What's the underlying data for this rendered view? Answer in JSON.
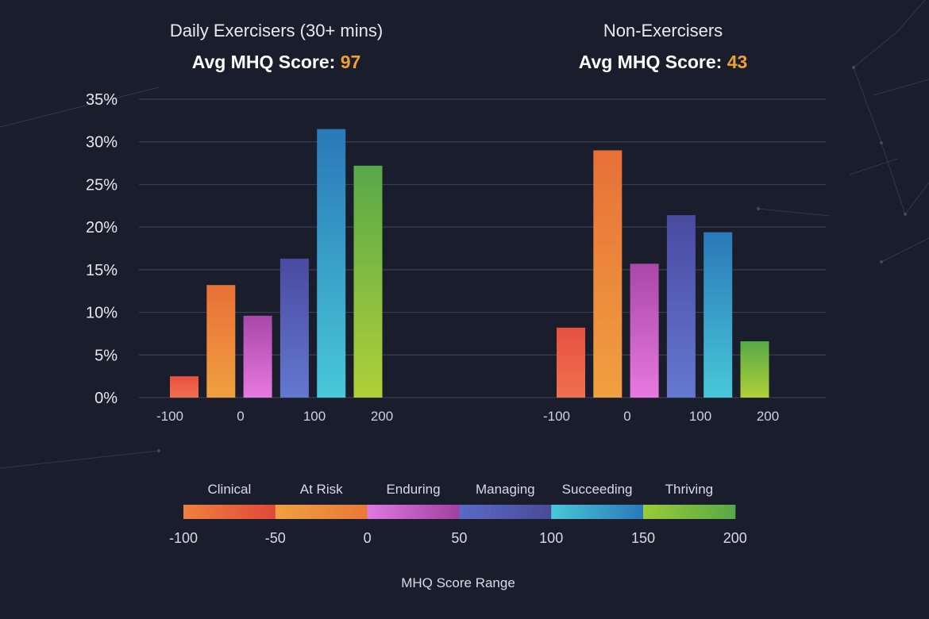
{
  "chart_data": [
    {
      "type": "bar",
      "title": "Daily Exercisers (30+ mins)",
      "score_label": "Avg MHQ Score: ",
      "score_value": "97",
      "categories": [
        "Clinical",
        "At Risk",
        "Enduring",
        "Managing",
        "Succeeding",
        "Thriving"
      ],
      "values": [
        2.5,
        13.2,
        9.6,
        16.3,
        31.5,
        27.2
      ],
      "value_unit": "%",
      "x_ticks": [
        "-100",
        "0",
        "100",
        "200"
      ],
      "ylim": [
        0,
        35
      ],
      "y_ticks": [
        "0%",
        "5%",
        "10%",
        "15%",
        "20%",
        "25%",
        "30%",
        "35%"
      ],
      "grid": true
    },
    {
      "type": "bar",
      "title": "Non-Exercisers",
      "score_label": "Avg MHQ Score: ",
      "score_value": "43",
      "categories": [
        "Clinical",
        "At Risk",
        "Enduring",
        "Managing",
        "Succeeding",
        "Thriving"
      ],
      "values": [
        8.2,
        29.0,
        15.7,
        21.4,
        19.4,
        6.6
      ],
      "value_unit": "%",
      "x_ticks": [
        "-100",
        "0",
        "100",
        "200"
      ],
      "ylim": [
        0,
        35
      ],
      "y_ticks": [
        "0%",
        "5%",
        "10%",
        "15%",
        "20%",
        "25%",
        "30%",
        "35%"
      ],
      "grid": true
    }
  ],
  "legend": {
    "items": [
      {
        "label": "Clinical",
        "color_from": "#f08040",
        "color_to": "#e04838"
      },
      {
        "label": "At Risk",
        "color_from": "#f0a040",
        "color_to": "#e87838"
      },
      {
        "label": "Enduring",
        "color_from": "#e078e0",
        "color_to": "#a040a0"
      },
      {
        "label": "Managing",
        "color_from": "#5a6ac8",
        "color_to": "#4a4a98"
      },
      {
        "label": "Succeeding",
        "color_from": "#48c8d8",
        "color_to": "#2a78b8"
      },
      {
        "label": "Thriving",
        "color_from": "#98cc38",
        "color_to": "#58a848"
      }
    ],
    "ticks": [
      "-100",
      "-50",
      "0",
      "50",
      "100",
      "150",
      "200"
    ],
    "axis_title": "MHQ Score Range"
  },
  "bar_colors": [
    {
      "top": "#e85040",
      "bottom": "#f07050"
    },
    {
      "top": "#e87038",
      "bottom": "#f0a040"
    },
    {
      "top": "#a848a8",
      "bottom": "#e878e0"
    },
    {
      "top": "#4a4aa0",
      "bottom": "#6478d0"
    },
    {
      "top": "#2a78b8",
      "bottom": "#48c8d8"
    },
    {
      "top": "#58a848",
      "bottom": "#b0d038"
    }
  ]
}
